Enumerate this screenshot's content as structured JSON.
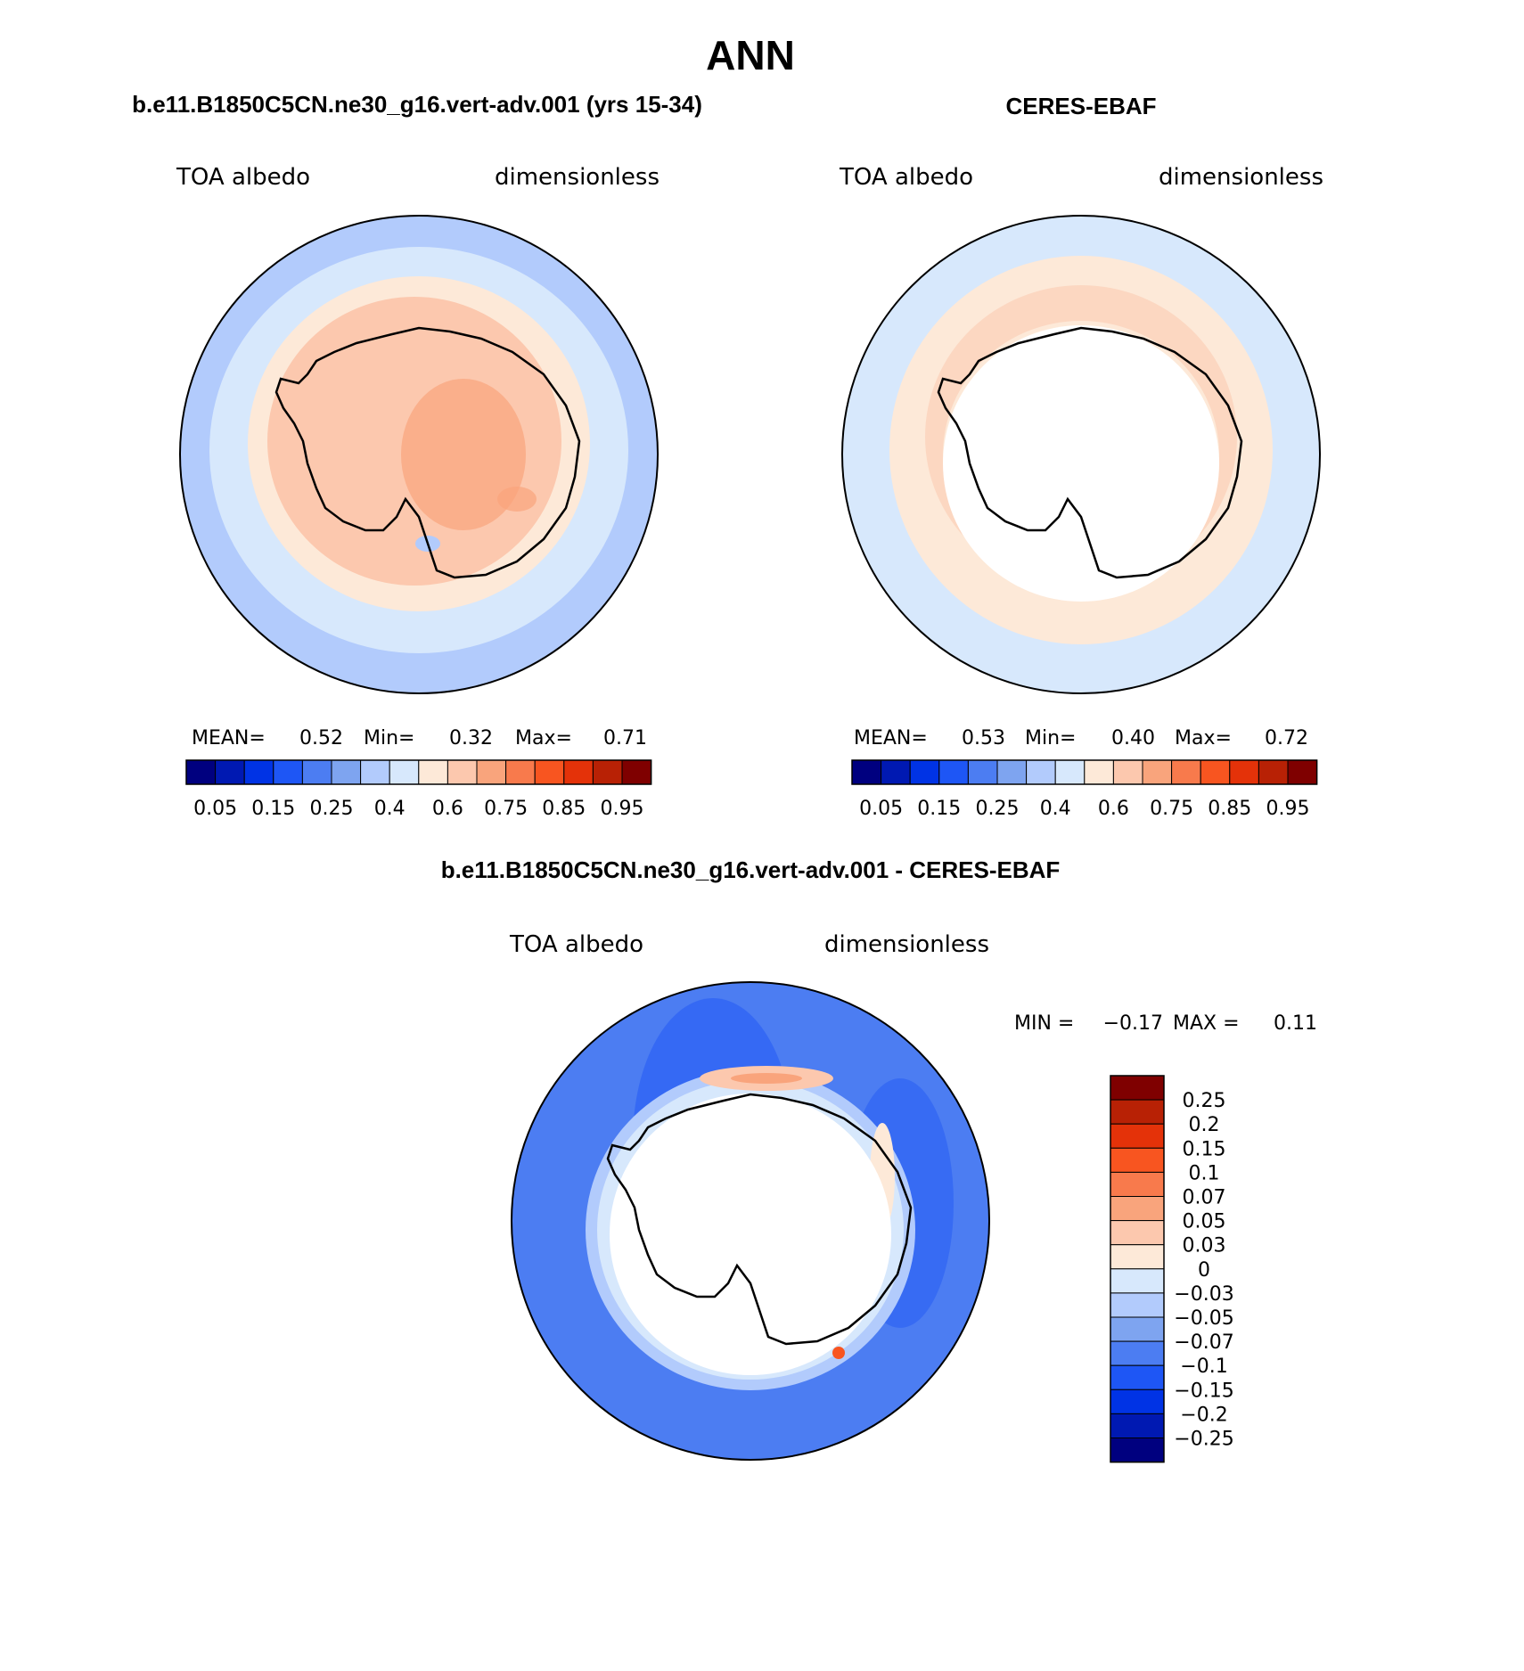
{
  "title": "ANN",
  "colors": {
    "seq": [
      "#00007f",
      "#0019b2",
      "#0033e5",
      "#1e56f5",
      "#4c7df2",
      "#7ea4f0",
      "#b2cbfc",
      "#d7e8fc",
      "#fde9d8",
      "#fcc8ae",
      "#f9a47c",
      "#f87a4c",
      "#f85520",
      "#e43209",
      "#b82105",
      "#7f0000"
    ],
    "diff": [
      "#00007f",
      "#0019b2",
      "#0033e5",
      "#1e56f5",
      "#4c7df2",
      "#7ea4f0",
      "#b2cbfc",
      "#d7e8fc",
      "#fde9d8",
      "#fcc8ae",
      "#f9a47c",
      "#f87a4c",
      "#f85520",
      "#e43209",
      "#b82105",
      "#7f0000"
    ]
  },
  "panels": [
    {
      "title": "b.e11.B1850C5CN.ne30_g16.vert-adv.001 (yrs 15-34)",
      "variable": "TOA albedo",
      "units": "dimensionless",
      "stats": {
        "mean_label": "MEAN=",
        "mean": "0.52",
        "min_label": "Min=",
        "min": "0.32",
        "max_label": "Max=",
        "max": "0.71"
      },
      "colorbar_labels": [
        "0.05",
        "0.15",
        "0.25",
        "0.4",
        "0.6",
        "0.75",
        "0.85",
        "0.95"
      ]
    },
    {
      "title": "CERES-EBAF",
      "variable": "TOA albedo",
      "units": "dimensionless",
      "stats": {
        "mean_label": "MEAN=",
        "mean": "0.53",
        "min_label": "Min=",
        "min": "0.40",
        "max_label": "Max=",
        "max": "0.72"
      },
      "colorbar_labels": [
        "0.05",
        "0.15",
        "0.25",
        "0.4",
        "0.6",
        "0.75",
        "0.85",
        "0.95"
      ]
    }
  ],
  "difference": {
    "title": "b.e11.B1850C5CN.ne30_g16.vert-adv.001 - CERES-EBAF",
    "variable": "TOA albedo",
    "units": "dimensionless",
    "min_label": "MIN =",
    "min": "−0.17",
    "max_label": "MAX =",
    "max": "0.11",
    "colorbar_labels": [
      "0.25",
      "0.2",
      "0.15",
      "0.1",
      "0.07",
      "0.05",
      "0.03",
      "0",
      "−0.03",
      "−0.05",
      "−0.07",
      "−0.1",
      "−0.15",
      "−0.2",
      "−0.25"
    ]
  }
}
